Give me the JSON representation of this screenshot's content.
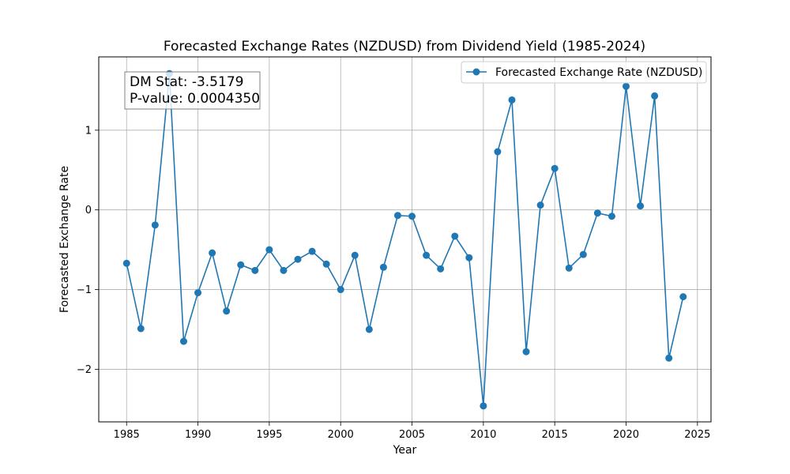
{
  "chart_data": {
    "type": "line",
    "title": "Forecasted Exchange Rates (NZDUSD) from Dividend Yield (1985-2024)",
    "xlabel": "Year",
    "ylabel": "Forecasted Exchange Rate",
    "xlim": [
      1983.05,
      2025.95
    ],
    "ylim": [
      -2.66,
      1.92
    ],
    "x_ticks": [
      1985,
      1990,
      1995,
      2000,
      2005,
      2010,
      2015,
      2020,
      2025
    ],
    "y_ticks": [
      -2,
      -1,
      0,
      1
    ],
    "grid": true,
    "legend_position": "upper right",
    "series": [
      {
        "name": "Forecasted Exchange Rate (NZDUSD)",
        "color": "#1f77b4",
        "marker": "circle",
        "x": [
          1985,
          1986,
          1987,
          1988,
          1989,
          1990,
          1991,
          1992,
          1993,
          1994,
          1995,
          1996,
          1997,
          1998,
          1999,
          2000,
          2001,
          2002,
          2003,
          2004,
          2005,
          2006,
          2007,
          2008,
          2009,
          2010,
          2011,
          2012,
          2013,
          2014,
          2015,
          2016,
          2017,
          2018,
          2019,
          2020,
          2021,
          2022,
          2023,
          2024
        ],
        "y": [
          -0.67,
          -1.49,
          -0.19,
          1.71,
          -1.65,
          -1.04,
          -0.54,
          -1.27,
          -0.69,
          -0.76,
          -0.5,
          -0.76,
          -0.62,
          -0.52,
          -0.68,
          -1.0,
          -0.57,
          -1.5,
          -0.72,
          -0.07,
          -0.08,
          -0.57,
          -0.74,
          -0.33,
          -0.6,
          -2.46,
          0.73,
          1.38,
          -1.78,
          0.06,
          0.52,
          -0.73,
          -0.56,
          -0.04,
          -0.08,
          1.55,
          0.05,
          1.43,
          -1.86,
          -1.09
        ]
      }
    ],
    "annotation": {
      "lines": [
        "DM Stat: -3.5179",
        "P-value: 0.0004350"
      ]
    }
  }
}
